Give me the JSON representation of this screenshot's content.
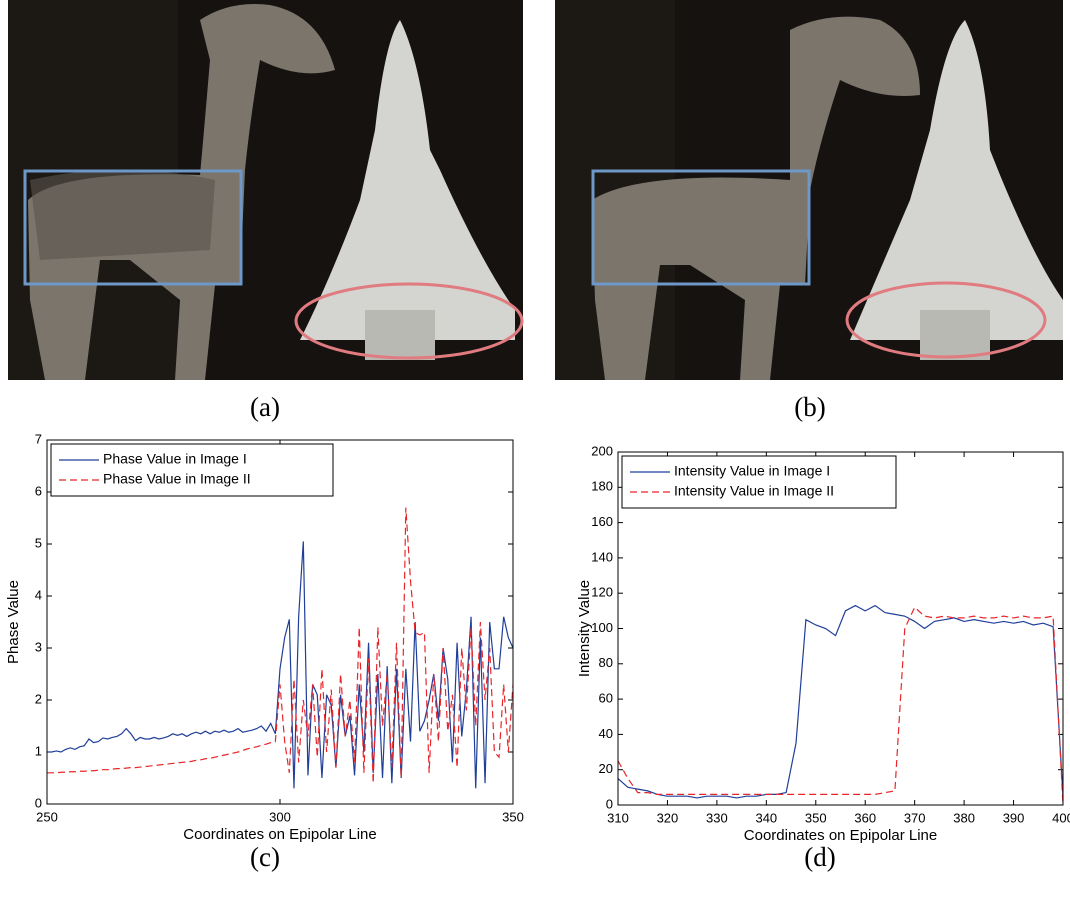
{
  "captions": [
    "(a)",
    "(b)",
    "(c)",
    "(d)"
  ],
  "chart_data": [
    {
      "type": "line",
      "xlabel": "Coordinates on Epipolar Line",
      "ylabel": "Phase Value",
      "xlim": [
        250,
        350
      ],
      "xticks": [
        250,
        300,
        350
      ],
      "ylim": [
        0,
        7
      ],
      "yticks": [
        0,
        1,
        2,
        3,
        4,
        5,
        6,
        7
      ],
      "legend": "upper left",
      "x": [
        250,
        251,
        252,
        253,
        254,
        255,
        256,
        257,
        258,
        259,
        260,
        261,
        262,
        263,
        264,
        265,
        266,
        267,
        268,
        269,
        270,
        271,
        272,
        273,
        274,
        275,
        276,
        277,
        278,
        279,
        280,
        281,
        282,
        283,
        284,
        285,
        286,
        287,
        288,
        289,
        290,
        291,
        292,
        293,
        294,
        295,
        296,
        297,
        298,
        299,
        300,
        301,
        302,
        303,
        304,
        305,
        306,
        307,
        308,
        309,
        310,
        311,
        312,
        313,
        314,
        315,
        316,
        317,
        318,
        319,
        320,
        321,
        322,
        323,
        324,
        325,
        326,
        327,
        328,
        329,
        330,
        331,
        332,
        333,
        334,
        335,
        336,
        337,
        338,
        339,
        340,
        341,
        342,
        343,
        344,
        345,
        346,
        347,
        348,
        349,
        350
      ],
      "series": [
        {
          "name": "Phase Value in Image I",
          "color": "#1f3f99",
          "line_style": "solid",
          "values": [
            1.0,
            1.0,
            1.02,
            1.0,
            1.05,
            1.08,
            1.05,
            1.1,
            1.12,
            1.25,
            1.18,
            1.2,
            1.27,
            1.25,
            1.28,
            1.3,
            1.35,
            1.45,
            1.35,
            1.22,
            1.28,
            1.25,
            1.25,
            1.28,
            1.25,
            1.27,
            1.3,
            1.35,
            1.32,
            1.35,
            1.3,
            1.35,
            1.38,
            1.35,
            1.4,
            1.35,
            1.4,
            1.38,
            1.42,
            1.38,
            1.4,
            1.45,
            1.38,
            1.4,
            1.42,
            1.45,
            1.5,
            1.4,
            1.55,
            1.35,
            2.6,
            3.2,
            3.55,
            0.3,
            3.6,
            5.05,
            0.55,
            2.3,
            2.1,
            0.5,
            2.1,
            1.9,
            0.7,
            2.1,
            1.3,
            1.7,
            0.55,
            2.3,
            1.0,
            3.1,
            0.6,
            2.5,
            0.5,
            2.65,
            0.4,
            2.6,
            0.5,
            2.6,
            1.2,
            3.5,
            1.4,
            1.6,
            2.0,
            2.5,
            1.6,
            3.0,
            2.4,
            0.8,
            3.1,
            1.3,
            2.2,
            3.6,
            0.3,
            3.2,
            0.4,
            3.5,
            2.6,
            2.6,
            3.6,
            3.2,
            3.0
          ]
        },
        {
          "name": "Phase Value in Image II",
          "color": "#e8262a",
          "line_style": "dashed",
          "values": [
            0.6,
            0.6,
            0.6,
            0.61,
            0.61,
            0.62,
            0.62,
            0.63,
            0.63,
            0.64,
            0.64,
            0.65,
            0.66,
            0.66,
            0.67,
            0.68,
            0.68,
            0.69,
            0.7,
            0.7,
            0.71,
            0.72,
            0.73,
            0.74,
            0.75,
            0.76,
            0.77,
            0.78,
            0.79,
            0.8,
            0.81,
            0.82,
            0.84,
            0.85,
            0.87,
            0.88,
            0.9,
            0.92,
            0.94,
            0.96,
            0.98,
            1.0,
            1.03,
            1.06,
            1.08,
            1.1,
            1.13,
            1.15,
            1.18,
            1.2,
            2.3,
            1.2,
            0.6,
            2.4,
            0.8,
            2.0,
            1.3,
            2.3,
            0.9,
            2.6,
            1.0,
            2.2,
            0.7,
            2.5,
            1.3,
            2.0,
            0.8,
            3.4,
            0.6,
            2.8,
            0.4,
            3.4,
            1.5,
            2.5,
            0.7,
            3.1,
            0.5,
            5.7,
            4.3,
            3.3,
            3.25,
            3.3,
            0.6,
            2.5,
            1.2,
            3.0,
            1.4,
            2.1,
            0.7,
            3.0,
            1.8,
            3.4,
            1.5,
            3.5,
            2.0,
            3.0,
            1.0,
            0.9,
            2.3,
            1.0,
            2.3
          ]
        }
      ]
    },
    {
      "type": "line",
      "xlabel": "Coordinates on Epipolar Line",
      "ylabel": "Intensity Value",
      "xlim": [
        310,
        400
      ],
      "xticks": [
        310,
        320,
        330,
        340,
        350,
        360,
        370,
        380,
        390,
        400
      ],
      "ylim": [
        0,
        200
      ],
      "yticks": [
        0,
        20,
        40,
        60,
        80,
        100,
        120,
        140,
        160,
        180,
        200
      ],
      "legend": "upper left",
      "x": [
        310,
        312,
        314,
        316,
        318,
        320,
        322,
        324,
        326,
        328,
        330,
        332,
        334,
        336,
        338,
        340,
        342,
        344,
        346,
        348,
        350,
        352,
        354,
        356,
        358,
        360,
        362,
        364,
        366,
        368,
        370,
        372,
        374,
        376,
        378,
        380,
        382,
        384,
        386,
        388,
        390,
        392,
        394,
        396,
        398,
        400
      ],
      "series": [
        {
          "name": "Intensity Value in Image I",
          "color": "#1f3f99",
          "line_style": "solid",
          "values": [
            15,
            10,
            9,
            8,
            6,
            5,
            5,
            5,
            4,
            5,
            5,
            5,
            4,
            5,
            5,
            6,
            6,
            7,
            35,
            105,
            102,
            100,
            96,
            110,
            113,
            110,
            113,
            109,
            108,
            107,
            104,
            100,
            104,
            105,
            106,
            104,
            105,
            104,
            103,
            104,
            103,
            104,
            102,
            103,
            101,
            5
          ]
        },
        {
          "name": "Intensity Value in Image II",
          "color": "#e8262a",
          "line_style": "dashed",
          "values": [
            25,
            15,
            7,
            7,
            6,
            6,
            6,
            6,
            6,
            6,
            6,
            6,
            6,
            6,
            6,
            6,
            6,
            6,
            6,
            6,
            6,
            6,
            6,
            6,
            6,
            6,
            6,
            7,
            8,
            100,
            112,
            107,
            106,
            107,
            106,
            106,
            107,
            106,
            106,
            107,
            106,
            107,
            106,
            106,
            107,
            0
          ]
        }
      ]
    }
  ]
}
